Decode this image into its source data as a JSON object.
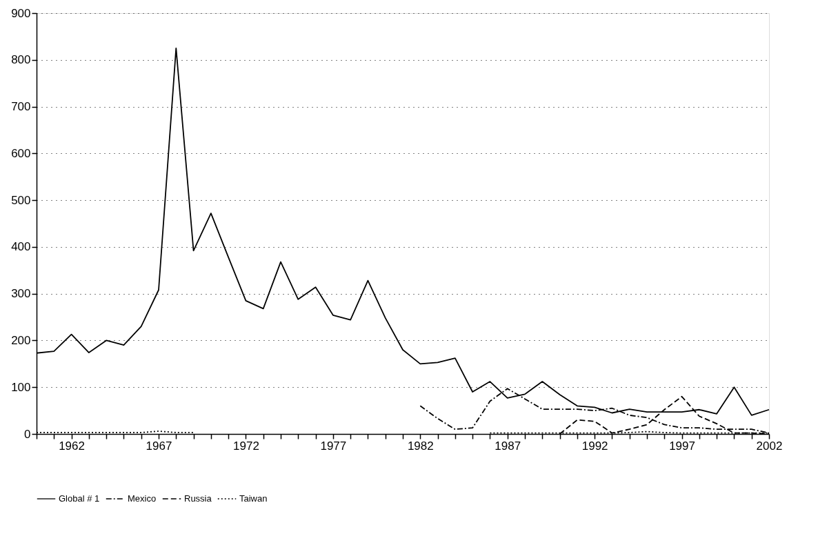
{
  "chart_data": {
    "type": "line",
    "x": [
      1960,
      1961,
      1962,
      1963,
      1964,
      1965,
      1966,
      1967,
      1968,
      1969,
      1970,
      1971,
      1972,
      1973,
      1974,
      1975,
      1976,
      1977,
      1978,
      1979,
      1980,
      1981,
      1982,
      1983,
      1984,
      1985,
      1986,
      1987,
      1988,
      1989,
      1990,
      1991,
      1992,
      1993,
      1994,
      1995,
      1996,
      1997,
      1998,
      1999,
      2000,
      2001,
      2002
    ],
    "series": [
      {
        "name": "Global # 1",
        "color": "#000000",
        "line_style": "solid",
        "values": [
          173,
          177,
          213,
          174,
          200,
          190,
          230,
          308,
          825,
          392,
          472,
          378,
          285,
          268,
          368,
          288,
          314,
          254,
          244,
          328,
          248,
          180,
          150,
          153,
          162,
          90,
          112,
          77,
          85,
          112,
          84,
          60,
          57,
          45,
          53,
          47,
          47,
          47,
          52,
          43,
          100,
          40,
          52
        ]
      },
      {
        "name": "Mexico",
        "color": "#000000",
        "line_style": "dashdot",
        "values": [
          null,
          null,
          null,
          null,
          null,
          null,
          null,
          null,
          null,
          null,
          null,
          null,
          null,
          null,
          null,
          null,
          null,
          null,
          null,
          null,
          null,
          null,
          60,
          33,
          10,
          13,
          70,
          97,
          75,
          53,
          53,
          53,
          50,
          55,
          40,
          35,
          20,
          13,
          13,
          10,
          10,
          10,
          2
        ]
      },
      {
        "name": "Russia",
        "color": "#000000",
        "line_style": "dashed",
        "values": [
          null,
          null,
          null,
          null,
          null,
          null,
          null,
          null,
          null,
          null,
          null,
          null,
          null,
          null,
          null,
          null,
          null,
          null,
          null,
          null,
          null,
          null,
          null,
          null,
          null,
          null,
          null,
          null,
          null,
          null,
          0,
          30,
          27,
          2,
          10,
          20,
          52,
          80,
          38,
          22,
          2,
          2,
          0
        ]
      },
      {
        "name": "Taiwan",
        "color": "#000000",
        "line_style": "dotted",
        "values": [
          3,
          3,
          3,
          3,
          3,
          3,
          3,
          6,
          3,
          3,
          null,
          null,
          null,
          null,
          null,
          null,
          null,
          null,
          null,
          null,
          null,
          null,
          null,
          null,
          null,
          null,
          2,
          2,
          2,
          2,
          2,
          2,
          2,
          2,
          3,
          5,
          3,
          2,
          2,
          2,
          2,
          2,
          2
        ]
      }
    ],
    "xlim": [
      1960,
      2002
    ],
    "xticks": [
      {
        "value": 1960,
        "label": null
      },
      {
        "value": 1961,
        "label": null
      },
      1962,
      {
        "value": 1963,
        "label": null
      },
      {
        "value": 1964,
        "label": null
      },
      {
        "value": 1965,
        "label": null
      },
      {
        "value": 1966,
        "label": null
      },
      1967,
      {
        "value": 1968,
        "label": null
      },
      {
        "value": 1969,
        "label": null
      },
      {
        "value": 1970,
        "label": null
      },
      {
        "value": 1971,
        "label": null
      },
      1972,
      {
        "value": 1973,
        "label": null
      },
      {
        "value": 1974,
        "label": null
      },
      {
        "value": 1975,
        "label": null
      },
      {
        "value": 1976,
        "label": null
      },
      1977,
      {
        "value": 1978,
        "label": null
      },
      {
        "value": 1979,
        "label": null
      },
      {
        "value": 1980,
        "label": null
      },
      {
        "value": 1981,
        "label": null
      },
      1982,
      {
        "value": 1983,
        "label": null
      },
      {
        "value": 1984,
        "label": null
      },
      {
        "value": 1985,
        "label": null
      },
      {
        "value": 1986,
        "label": null
      },
      1987,
      {
        "value": 1988,
        "label": null
      },
      {
        "value": 1989,
        "label": null
      },
      {
        "value": 1990,
        "label": null
      },
      {
        "value": 1991,
        "label": null
      },
      1992,
      {
        "value": 1993,
        "label": null
      },
      {
        "value": 1994,
        "label": null
      },
      {
        "value": 1995,
        "label": null
      },
      {
        "value": 1996,
        "label": null
      },
      1997,
      {
        "value": 1998,
        "label": null
      },
      {
        "value": 1999,
        "label": null
      },
      {
        "value": 2000,
        "label": null
      },
      {
        "value": 2001,
        "label": null
      },
      2002
    ],
    "ylim": [
      0,
      900
    ],
    "yticks": [
      0,
      100,
      200,
      300,
      400,
      500,
      600,
      700,
      800,
      900
    ],
    "grid": "y",
    "legend": "bottom",
    "marker": "none"
  }
}
